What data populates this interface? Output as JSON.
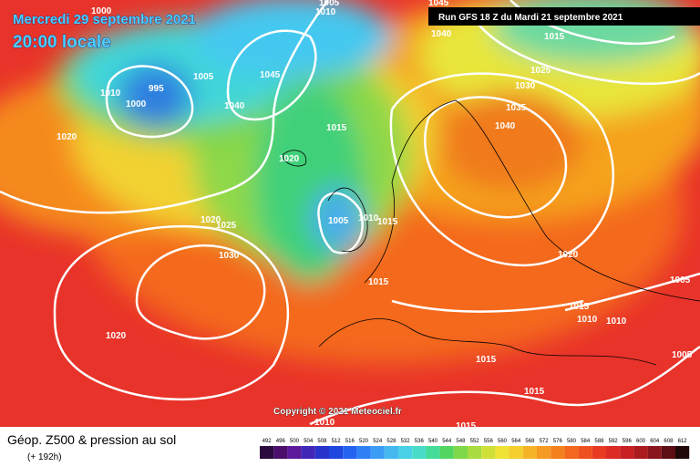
{
  "header": {
    "date": "Mercredi 29 septembre 2021",
    "time": "20:00 locale",
    "run": "Run GFS 18 Z du Mardi 21 septembre 2021"
  },
  "isobars": [
    1000,
    1005,
    1010,
    1045,
    1010,
    995,
    1000,
    1005,
    1045,
    1040,
    1020,
    1015,
    1020,
    1005,
    1010,
    1015,
    1020,
    1025,
    1030,
    1015,
    1020,
    1010,
    1015,
    1015,
    1015,
    1015,
    1010,
    1010,
    1005,
    1005,
    1020,
    1040,
    1035,
    1030,
    1025,
    1015,
    1040
  ],
  "copyright": "Copyright © 2021 Meteociel.fr",
  "footer": {
    "title": "Géop. Z500 & pression au sol",
    "lead": "(+ 192h)"
  },
  "scale": [
    492,
    496,
    500,
    504,
    508,
    512,
    516,
    520,
    524,
    528,
    532,
    536,
    540,
    544,
    548,
    552,
    556,
    560,
    564,
    568,
    572,
    576,
    580,
    584,
    588,
    592,
    596,
    600,
    604,
    608,
    612
  ]
}
